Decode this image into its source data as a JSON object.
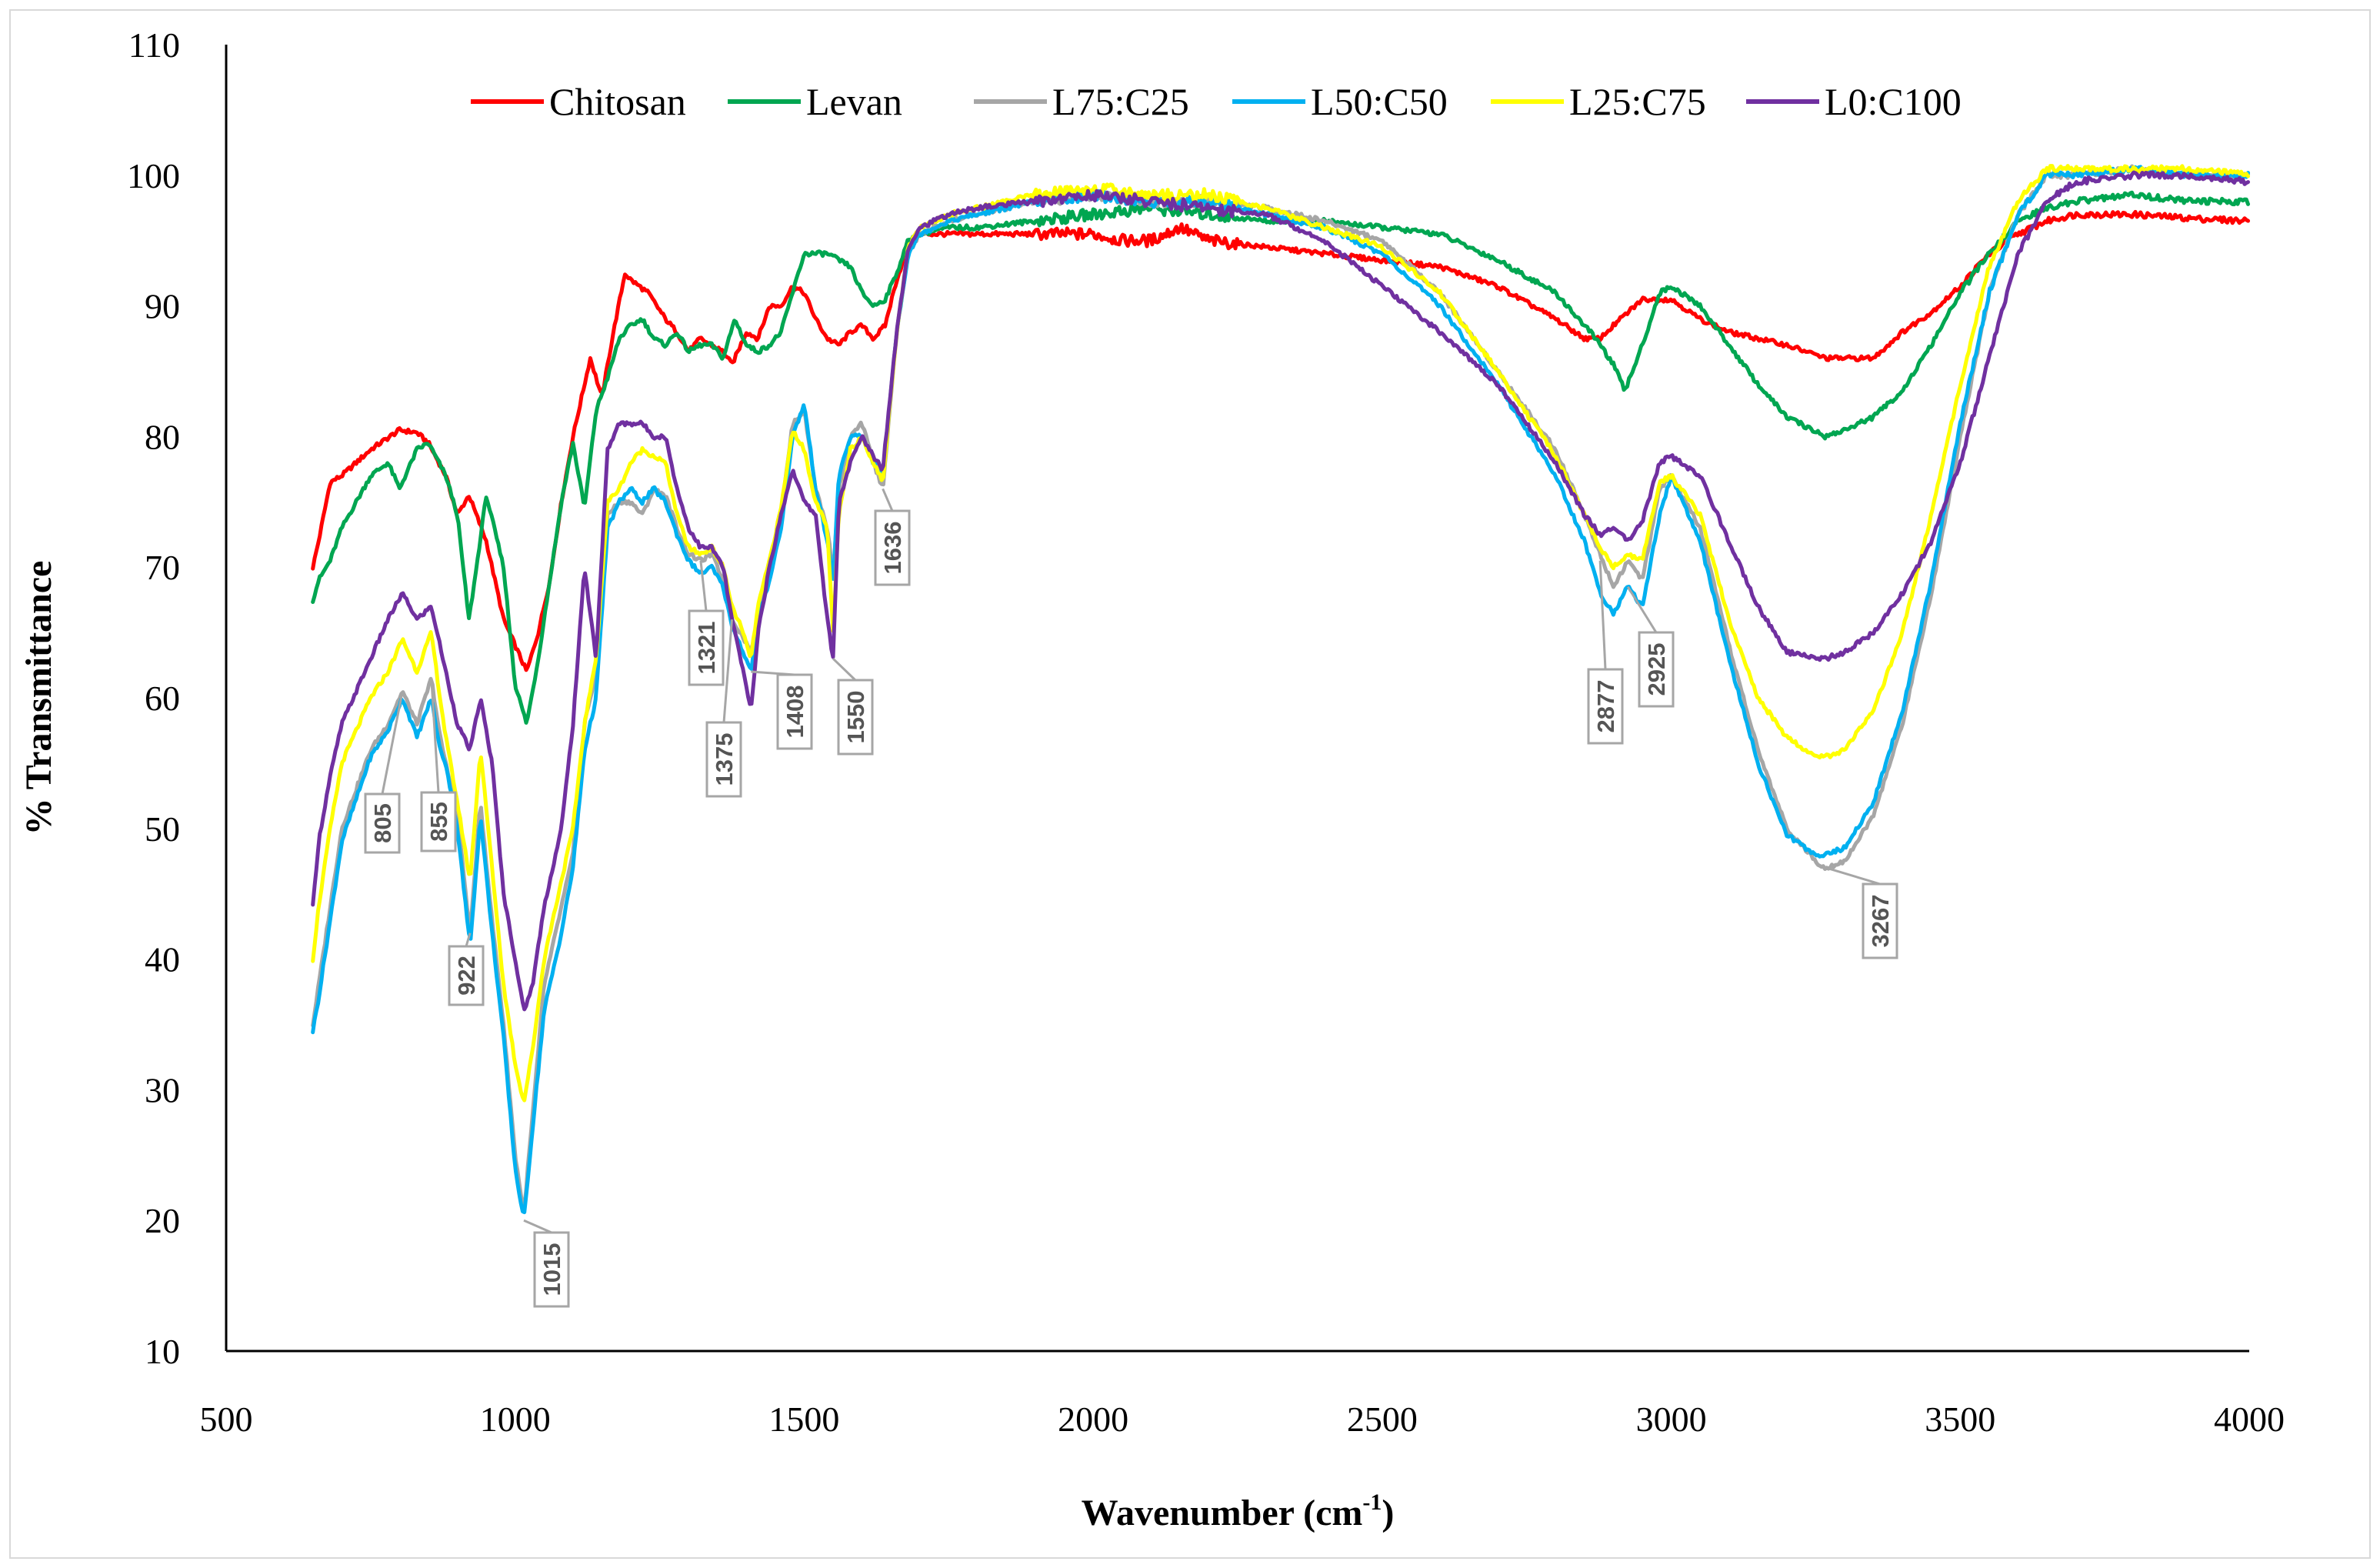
{
  "chart_data": {
    "type": "line",
    "title": "",
    "xlabel": "Wavenumber (cm",
    "xlabel_sup": "-1",
    "xlabel_close": ")",
    "ylabel": "% Transmittance",
    "xlim": [
      500,
      4000
    ],
    "ylim": [
      10,
      110
    ],
    "xticks": [
      500,
      1000,
      1500,
      2000,
      2500,
      3000,
      3500,
      4000
    ],
    "yticks": [
      10,
      20,
      30,
      40,
      50,
      60,
      70,
      80,
      90,
      100,
      110
    ],
    "legend_position": "top",
    "series": [
      {
        "name": "Chitosan",
        "color": "#ff0000",
        "x": [
          650,
          660,
          680,
          700,
          750,
          800,
          830,
          850,
          880,
          900,
          920,
          950,
          980,
          1000,
          1020,
          1040,
          1060,
          1080,
          1100,
          1130,
          1150,
          1170,
          1190,
          1200,
          1230,
          1260,
          1280,
          1300,
          1320,
          1340,
          1360,
          1375,
          1400,
          1420,
          1440,
          1460,
          1480,
          1500,
          1520,
          1540,
          1560,
          1580,
          1600,
          1620,
          1640,
          1660,
          1680,
          1700,
          1750,
          1800,
          1900,
          2000,
          2050,
          2100,
          2150,
          2200,
          2300,
          2400,
          2500,
          2600,
          2700,
          2800,
          2850,
          2877,
          2900,
          2925,
          2950,
          3000,
          3050,
          3100,
          3200,
          3267,
          3300,
          3350,
          3400,
          3450,
          3500,
          3550,
          3600,
          3650,
          3700,
          3800,
          3900,
          4000
        ],
        "y": [
          70,
          72,
          76.5,
          77,
          79,
          80.5,
          80.3,
          79.5,
          77,
          74,
          75.5,
          72,
          66,
          64,
          62,
          65,
          69,
          75,
          80,
          86,
          83,
          88,
          92.5,
          92,
          91,
          89,
          88,
          86.5,
          87.5,
          87,
          86.5,
          85.5,
          88,
          87.5,
          90,
          90,
          91.5,
          91,
          89,
          87.5,
          87,
          88,
          88.5,
          87.5,
          88.5,
          92,
          94.5,
          95.5,
          95.5,
          95.5,
          95.5,
          95.5,
          95,
          95,
          96,
          95,
          94.5,
          94,
          93.5,
          93,
          91.5,
          89,
          87.5,
          87.5,
          88.5,
          89.5,
          90.5,
          90.5,
          89,
          88,
          87,
          86,
          86,
          86,
          88,
          89.5,
          91.5,
          94,
          95.5,
          96.5,
          97,
          97,
          96.7,
          96.5
        ]
      },
      {
        "name": "Levan",
        "color": "#00a651",
        "x": [
          650,
          660,
          680,
          700,
          750,
          780,
          800,
          830,
          850,
          880,
          900,
          910,
          920,
          930,
          950,
          980,
          1000,
          1020,
          1040,
          1060,
          1080,
          1100,
          1120,
          1140,
          1160,
          1180,
          1200,
          1220,
          1240,
          1260,
          1280,
          1300,
          1320,
          1340,
          1360,
          1380,
          1400,
          1420,
          1440,
          1460,
          1480,
          1500,
          1520,
          1540,
          1560,
          1580,
          1600,
          1620,
          1640,
          1660,
          1680,
          1700,
          1750,
          1800,
          1900,
          2000,
          2100,
          2200,
          2300,
          2400,
          2500,
          2600,
          2700,
          2800,
          2850,
          2870,
          2900,
          2920,
          2950,
          2980,
          3000,
          3050,
          3100,
          3150,
          3200,
          3267,
          3300,
          3350,
          3400,
          3450,
          3500,
          3550,
          3600,
          3650,
          3700,
          3800,
          3900,
          4000
        ],
        "y": [
          67.5,
          69,
          70.5,
          73,
          77,
          78,
          76,
          79,
          79.5,
          77,
          74,
          70,
          66,
          69,
          75.5,
          70,
          61,
          58,
          63,
          69,
          75,
          79.5,
          74.5,
          82,
          84.5,
          87.5,
          88.5,
          89,
          87.5,
          87,
          88,
          86.5,
          87,
          87,
          86,
          89,
          87,
          86.5,
          87,
          88,
          91,
          94,
          94,
          94,
          93.5,
          93,
          91,
          90,
          90.5,
          92.5,
          95,
          95.5,
          96,
          96,
          96.5,
          97,
          97.5,
          97,
          96.5,
          96.5,
          96,
          95.5,
          93.5,
          91,
          88.5,
          87.5,
          85.5,
          83.5,
          87,
          91,
          91.5,
          90,
          87,
          84,
          81.5,
          80,
          80.5,
          81.5,
          83.5,
          87,
          91,
          94,
          96.5,
          97.5,
          98,
          98.5,
          98,
          98
        ]
      },
      {
        "name": "L75:C25",
        "color": "#a6a6a6",
        "x": [
          650,
          660,
          680,
          700,
          750,
          780,
          805,
          830,
          855,
          870,
          880,
          900,
          922,
          940,
          960,
          980,
          1000,
          1015,
          1030,
          1050,
          1080,
          1100,
          1120,
          1140,
          1160,
          1180,
          1200,
          1220,
          1240,
          1260,
          1280,
          1300,
          1321,
          1340,
          1360,
          1375,
          1390,
          1408,
          1420,
          1440,
          1460,
          1480,
          1500,
          1520,
          1540,
          1550,
          1560,
          1580,
          1600,
          1620,
          1636,
          1660,
          1680,
          1700,
          1750,
          1800,
          1900,
          2000,
          2100,
          2200,
          2300,
          2400,
          2500,
          2600,
          2700,
          2800,
          2850,
          2877,
          2900,
          2925,
          2950,
          2980,
          3000,
          3050,
          3100,
          3150,
          3200,
          3250,
          3267,
          3300,
          3350,
          3400,
          3450,
          3500,
          3550,
          3600,
          3650,
          3700,
          3800,
          3900,
          4000
        ],
        "y": [
          35,
          38,
          44,
          50,
          56,
          58,
          60.5,
          58,
          61.5,
          57,
          55,
          51,
          42,
          52,
          43,
          35,
          25,
          20.5,
          28,
          38,
          44,
          48,
          58,
          62,
          74,
          75,
          75,
          74,
          76,
          75.5,
          73,
          71,
          70.5,
          71,
          69,
          66,
          65,
          63.5,
          66,
          70,
          74,
          81,
          82,
          76,
          73,
          69.5,
          76,
          80,
          81,
          78,
          76,
          88,
          94,
          95.5,
          96.5,
          97,
          98,
          98.5,
          98,
          98,
          97.5,
          96.5,
          95,
          91,
          85,
          79,
          74,
          71,
          68.5,
          70.5,
          69,
          76,
          77,
          73,
          64,
          56,
          50,
          47.5,
          47,
          47.5,
          51,
          58,
          68,
          80,
          91,
          97,
          100,
          100,
          100.5,
          100,
          100
        ]
      },
      {
        "name": "L50:C50",
        "color": "#00b0f0",
        "x": [
          650,
          660,
          680,
          700,
          750,
          780,
          805,
          830,
          855,
          870,
          880,
          900,
          922,
          940,
          960,
          980,
          1000,
          1015,
          1030,
          1050,
          1080,
          1100,
          1120,
          1140,
          1160,
          1180,
          1200,
          1220,
          1240,
          1260,
          1280,
          1300,
          1321,
          1340,
          1360,
          1375,
          1390,
          1408,
          1420,
          1440,
          1460,
          1480,
          1500,
          1520,
          1540,
          1550,
          1560,
          1580,
          1600,
          1620,
          1636,
          1660,
          1680,
          1700,
          1750,
          1800,
          1900,
          2000,
          2100,
          2200,
          2300,
          2400,
          2500,
          2600,
          2700,
          2800,
          2850,
          2877,
          2900,
          2925,
          2950,
          2980,
          3000,
          3050,
          3100,
          3150,
          3200,
          3250,
          3267,
          3300,
          3350,
          3400,
          3450,
          3500,
          3550,
          3600,
          3650,
          3700,
          3800,
          3900,
          4000
        ],
        "y": [
          34.5,
          37,
          43,
          49,
          55.5,
          57.5,
          60,
          57,
          60,
          56,
          55,
          50,
          41,
          51,
          42,
          34,
          24,
          20,
          27,
          36,
          42,
          47,
          56,
          60,
          73,
          75,
          76,
          75,
          76,
          75,
          72.5,
          70.5,
          69.5,
          70,
          68.5,
          65.5,
          64,
          62,
          66,
          69,
          73,
          80,
          82.5,
          76,
          72,
          69,
          77,
          80,
          80,
          78,
          77,
          88,
          94,
          95.5,
          96.5,
          97,
          98,
          98.5,
          98,
          98,
          97,
          96,
          94,
          90,
          84,
          77,
          72,
          68,
          66.5,
          68.5,
          67,
          74,
          77,
          72,
          63,
          55,
          49.5,
          48,
          48,
          48.5,
          52,
          59,
          69,
          81,
          91,
          97,
          100,
          100,
          100.5,
          100,
          100
        ]
      },
      {
        "name": "L25:C75",
        "color": "#ffff00",
        "x": [
          650,
          660,
          680,
          700,
          750,
          780,
          805,
          830,
          855,
          870,
          880,
          900,
          922,
          940,
          960,
          980,
          1000,
          1015,
          1030,
          1050,
          1080,
          1100,
          1120,
          1140,
          1160,
          1180,
          1200,
          1220,
          1240,
          1260,
          1280,
          1300,
          1321,
          1340,
          1360,
          1375,
          1390,
          1408,
          1420,
          1440,
          1460,
          1480,
          1500,
          1520,
          1540,
          1550,
          1560,
          1580,
          1600,
          1620,
          1636,
          1660,
          1680,
          1700,
          1750,
          1800,
          1900,
          2000,
          2100,
          2200,
          2300,
          2400,
          2500,
          2600,
          2700,
          2800,
          2850,
          2877,
          2900,
          2925,
          2950,
          2980,
          3000,
          3050,
          3100,
          3150,
          3200,
          3250,
          3267,
          3300,
          3350,
          3400,
          3450,
          3500,
          3550,
          3600,
          3650,
          3700,
          3800,
          3900,
          4000
        ],
        "y": [
          40,
          44,
          50,
          55,
          60,
          62,
          64.5,
          62,
          65,
          60,
          57,
          52,
          46,
          56,
          47,
          38,
          32,
          29,
          33,
          40,
          46,
          50,
          58,
          63,
          75,
          76,
          78,
          79,
          78.5,
          78,
          74,
          71.5,
          71,
          71.5,
          70,
          67,
          65.5,
          63,
          67,
          70.5,
          74.5,
          80.5,
          79,
          75,
          73,
          65,
          74,
          79,
          80,
          78,
          76.5,
          88,
          94.5,
          96,
          97,
          97.5,
          98.5,
          99,
          98.5,
          98.5,
          97.5,
          96,
          94.5,
          91,
          85,
          78.5,
          74,
          71.5,
          70,
          71,
          70.5,
          76.5,
          77,
          74,
          66,
          60,
          57,
          55.5,
          55.5,
          56,
          59,
          65,
          74,
          84,
          93,
          98,
          100.5,
          100.5,
          100.5,
          100.5,
          100
        ]
      },
      {
        "name": "L0:C100",
        "color": "#7030a0",
        "x": [
          650,
          660,
          680,
          700,
          750,
          780,
          805,
          830,
          855,
          870,
          880,
          900,
          922,
          940,
          960,
          980,
          1000,
          1015,
          1030,
          1050,
          1080,
          1100,
          1120,
          1140,
          1160,
          1180,
          1200,
          1220,
          1240,
          1260,
          1280,
          1300,
          1321,
          1340,
          1360,
          1375,
          1390,
          1408,
          1420,
          1440,
          1460,
          1480,
          1500,
          1520,
          1540,
          1550,
          1560,
          1580,
          1600,
          1620,
          1636,
          1660,
          1680,
          1700,
          1750,
          1800,
          1900,
          2000,
          2100,
          2200,
          2300,
          2400,
          2500,
          2600,
          2700,
          2800,
          2850,
          2877,
          2900,
          2925,
          2950,
          2980,
          3000,
          3050,
          3100,
          3150,
          3200,
          3250,
          3267,
          3300,
          3350,
          3400,
          3450,
          3500,
          3550,
          3600,
          3650,
          3700,
          3800,
          3900,
          4000
        ],
        "y": [
          44,
          49,
          54,
          58,
          63,
          66,
          68,
          66,
          67,
          64,
          62,
          58,
          56,
          60,
          55,
          45,
          40,
          36,
          38,
          44,
          50,
          58,
          70,
          63,
          79,
          81,
          81,
          81,
          80,
          80,
          76,
          73,
          71.5,
          71.5,
          70,
          66,
          63,
          59,
          65,
          70,
          74,
          77.5,
          75,
          74,
          66,
          63,
          75,
          78,
          80,
          78.5,
          77.5,
          88,
          94.5,
          96,
          97,
          97.5,
          98,
          98.5,
          98,
          97.5,
          97,
          95,
          91.5,
          88,
          84,
          78,
          74,
          72.5,
          73,
          72,
          73.5,
          78,
          78.5,
          77,
          72,
          67,
          63.5,
          63,
          63,
          63.5,
          65,
          68,
          72,
          78,
          86,
          94,
          98,
          99.5,
          100,
          100,
          99.5
        ]
      }
    ],
    "annotations": [
      {
        "label": "805",
        "x": 805,
        "y": 60.5
      },
      {
        "label": "855",
        "x": 855,
        "y": 61.5
      },
      {
        "label": "922",
        "x": 922,
        "y": 42
      },
      {
        "label": "1015",
        "x": 1015,
        "y": 20
      },
      {
        "label": "1321",
        "x": 1321,
        "y": 70.5
      },
      {
        "label": "1375",
        "x": 1375,
        "y": 66
      },
      {
        "label": "1408",
        "x": 1408,
        "y": 62
      },
      {
        "label": "1550",
        "x": 1550,
        "y": 63
      },
      {
        "label": "1636",
        "x": 1636,
        "y": 76
      },
      {
        "label": "2877",
        "x": 2877,
        "y": 70.5
      },
      {
        "label": "2925",
        "x": 2925,
        "y": 68.5
      },
      {
        "label": "3267",
        "x": 3267,
        "y": 47
      }
    ]
  }
}
